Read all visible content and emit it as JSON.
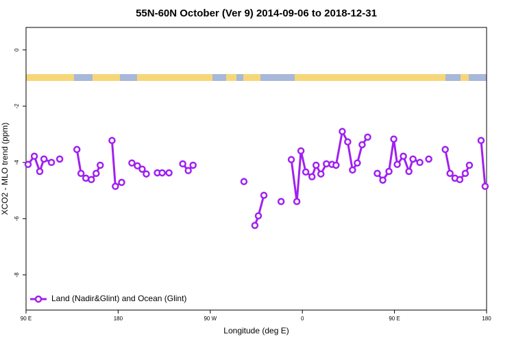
{
  "chart_data": {
    "type": "line",
    "title": "55N-60N October (Ver 9)   2014-09-06 to 2018-12-31",
    "x_label": "Longitude (deg E)",
    "y_label": "XCO2 - MLO trend (ppm)",
    "xlim": [
      90,
      540
    ],
    "xticks": [
      {
        "value": 90,
        "label": "90 E"
      },
      180,
      {
        "value": 270,
        "label": "90 W"
      },
      {
        "value": 360,
        "label": "0"
      },
      {
        "value": 450,
        "label": "90 E"
      },
      {
        "value": 540,
        "label": "180"
      }
    ],
    "ylim": [
      -9.25,
      0.8
    ],
    "yticks": [
      0,
      -2,
      -4,
      -6,
      -8
    ],
    "legend": "bottom-left",
    "x": [
      92.0,
      98.1,
      103.4,
      107.5,
      114.8,
      null,
      122.9,
      null,
      139.7,
      143.7,
      148.4,
      153.8,
      158.5,
      162.5,
      null,
      174.0,
      177.3,
      183.4,
      null,
      193.4,
      198.8,
      203.5,
      207.5,
      null,
      218.3,
      223.0,
      229.7,
      null,
      243.1,
      248.5,
      253.2,
      null,
      302.9,
      null,
      313.6,
      317.0,
      322.4,
      null,
      339.2,
      null,
      349.2,
      354.6,
      358.6,
      363.3,
      369.4,
      373.4,
      378.1,
      383.5,
      388.9,
      392.9,
      399.0,
      404.3,
      409.0,
      413.7,
      418.4,
      423.8,
      null,
      433.2,
      438.6,
      444.6,
      449.3,
      452.7,
      458.7,
      464.1,
      468.1,
      474.8,
      null,
      483.5,
      null,
      499.6,
      504.3,
      509.1,
      513.8,
      519.2,
      523.2,
      null,
      534.6,
      538.6
    ],
    "series": [
      {
        "name": "Land (Nadir&Glint) and Ocean (Glint)",
        "color": "#a020f0",
        "values": [
          -4.07,
          -3.78,
          -4.32,
          -3.88,
          -4.0,
          null,
          -3.88,
          null,
          -3.54,
          -4.39,
          -4.56,
          -4.61,
          -4.39,
          -4.1,
          null,
          -3.22,
          -4.85,
          -4.71,
          null,
          -4.02,
          -4.12,
          -4.24,
          -4.41,
          null,
          -4.37,
          -4.37,
          -4.37,
          null,
          -4.05,
          -4.29,
          -4.1,
          null,
          -4.68,
          null,
          -6.24,
          -5.9,
          -5.17,
          null,
          -5.39,
          null,
          -3.9,
          -5.39,
          -3.59,
          -4.34,
          -4.51,
          -4.1,
          -4.41,
          -4.05,
          -4.07,
          -4.1,
          -2.9,
          -3.27,
          -4.27,
          -4.02,
          -3.37,
          -3.1,
          null,
          -4.39,
          -4.63,
          -4.32,
          -3.17,
          -4.07,
          -3.78,
          -4.32,
          -3.88,
          -4.0,
          null,
          -3.88,
          null,
          -3.54,
          -4.39,
          -4.56,
          -4.61,
          -4.39,
          -4.1,
          null,
          -3.22,
          -4.85
        ]
      }
    ]
  }
}
